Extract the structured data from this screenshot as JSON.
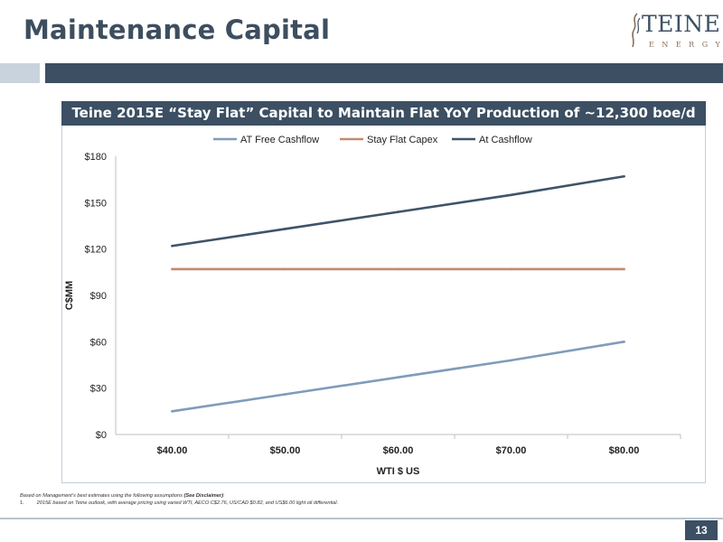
{
  "slide": {
    "title": "Maintenance Capital",
    "page_number": "13"
  },
  "logo": {
    "word": "TEINE",
    "sub": "ENERGY"
  },
  "colors": {
    "navy": "#3c4f63",
    "band_light": "#c9d3dd",
    "title": "#3d4e5f"
  },
  "chart_data": {
    "type": "line",
    "title": "Teine 2015E “Stay Flat” Capital to Maintain Flat YoY Production of ~12,300 boe/d",
    "xlabel": "WTI $ US",
    "ylabel": "C$MM",
    "categories": [
      "$40.00",
      "$50.00",
      "$60.00",
      "$70.00",
      "$80.00"
    ],
    "y_ticks": [
      "$0",
      "$30",
      "$60",
      "$90",
      "$120",
      "$150",
      "$180"
    ],
    "ylim": [
      0,
      180
    ],
    "grid": false,
    "legend_position": "top",
    "series": [
      {
        "name": "AT Free Cashflow",
        "color": "#7f9cbb",
        "values": [
          15,
          26,
          37,
          48,
          60
        ]
      },
      {
        "name": "Stay Flat Capex",
        "color": "#c38a6d",
        "values": [
          107,
          107,
          107,
          107,
          107
        ]
      },
      {
        "name": "At Cashflow",
        "color": "#3e5469",
        "values": [
          122,
          133,
          144,
          155,
          167
        ]
      }
    ]
  },
  "footnotes": {
    "line1_text": "Based on Management’s best estimates using the following assumptions ",
    "line1_bold": "(See Disclaimer)",
    "line1_end": ":",
    "line2_num": "1.",
    "line2_text": "2015E based on Teine outlook, with average pricing using varied WTI,  AECO C$2.76, US/CAD $0.82, and US$6.00 light oil differential."
  }
}
